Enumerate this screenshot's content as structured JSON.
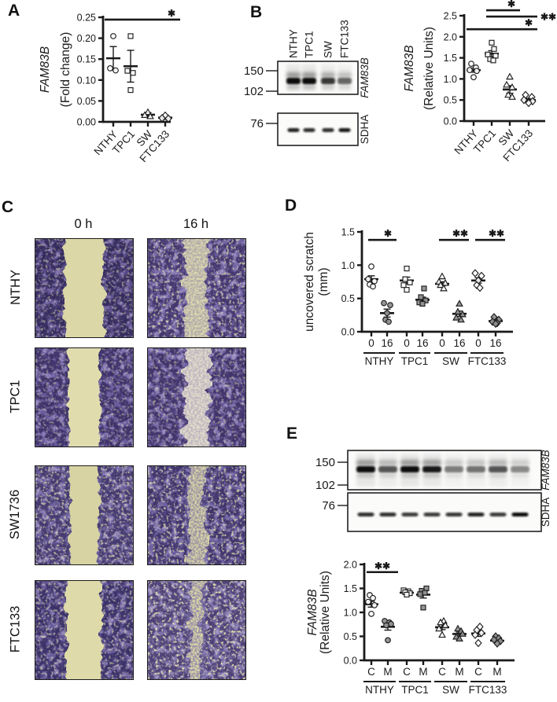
{
  "panels": {
    "A": "A",
    "B": "B",
    "C": "C",
    "D": "D",
    "E": "E"
  },
  "colors": {
    "ink": "#1a1a1a",
    "marker_fill_gray": "#8f8f8f",
    "stain_purple": "#5b4d8c",
    "scratch_pale": "#dcd8a8"
  },
  "panel_c": {
    "col_headers": [
      "0 h",
      "16 h"
    ],
    "row_labels": [
      "NTHY",
      "TPC1",
      "SW1736",
      "FTC133"
    ]
  },
  "blots": {
    "b": {
      "lane_labels": [
        "NTHY",
        "TPC1",
        "SW",
        "FTC133"
      ],
      "mw_top": [
        "150",
        "102"
      ],
      "mw_bottom": [
        "76"
      ],
      "target_top": "FAM83B",
      "target_bottom": "SDHA",
      "band_intensity_top": [
        1.0,
        1.0,
        0.8,
        0.6
      ],
      "band_intensity_bottom": [
        0.9,
        0.85,
        0.85,
        0.95
      ]
    },
    "e": {
      "lane_labels": [],
      "mw_top": [
        "150",
        "102"
      ],
      "mw_bottom": [
        "76"
      ],
      "target_top": "FAM83B",
      "target_bottom": "SDHA",
      "band_intensity_top": [
        1.0,
        0.68,
        1.0,
        0.95,
        0.5,
        0.55,
        0.68,
        0.45
      ],
      "band_intensity_bottom": [
        0.85,
        0.85,
        0.8,
        0.8,
        0.82,
        0.9,
        0.8,
        1.0
      ]
    }
  },
  "chart_data": [
    {
      "id": "A",
      "type": "scatter",
      "title": "",
      "ylabel": [
        {
          "text": "FAM83B",
          "italic": true
        },
        {
          "text": "(Fold change)",
          "italic": false
        }
      ],
      "ylim": [
        0,
        0.25
      ],
      "yticks": [
        "0.00",
        "0.05",
        "0.10",
        "0.15",
        "0.20",
        "0.25"
      ],
      "categories": [
        "NTHY",
        "TPC1",
        "SW",
        "FTC133"
      ],
      "columns": [
        {
          "tick": "NTHY",
          "marker": "circle",
          "filled": false,
          "mean": 0.152,
          "sem": 0.028,
          "points": [
            [
              0,
              0.205
            ],
            [
              -4,
              0.128
            ],
            [
              3,
              0.123
            ]
          ]
        },
        {
          "tick": "TPC1",
          "marker": "square",
          "filled": false,
          "mean": 0.133,
          "sem": 0.038,
          "points": [
            [
              0,
              0.205
            ],
            [
              -4,
              0.122
            ],
            [
              3,
              0.117
            ],
            [
              0,
              0.076
            ]
          ]
        },
        {
          "tick": "SW",
          "marker": "triangle",
          "filled": false,
          "mean": 0.017,
          "sem": 0.005,
          "points": [
            [
              0,
              0.023
            ],
            [
              -4,
              0.016
            ],
            [
              3,
              0.013
            ]
          ]
        },
        {
          "tick": "FTC133",
          "marker": "diamond",
          "filled": false,
          "mean": 0.01,
          "sem": 0.004,
          "points": [
            [
              0,
              0.015
            ],
            [
              -4,
              0.009
            ],
            [
              4,
              0.008
            ]
          ]
        }
      ],
      "sig": [
        {
          "c1": 0,
          "c2": 3,
          "ext": [
            -11,
            19
          ],
          "v": 0.2445,
          "label": "*",
          "pos": "above-right"
        }
      ]
    },
    {
      "id": "B",
      "type": "scatter",
      "title": "",
      "ylabel": [
        {
          "text": "FAM83B",
          "italic": true
        },
        {
          "text": "(Relative Units)",
          "italic": false
        }
      ],
      "ylim": [
        0,
        2.5
      ],
      "yticks": [
        "0.0",
        "0.5",
        "1.0",
        "1.5",
        "2.0",
        "2.5"
      ],
      "categories": [
        "NTHY",
        "TPC1",
        "SW",
        "FTC133"
      ],
      "columns": [
        {
          "tick": "NTHY",
          "marker": "circle",
          "filled": false,
          "mean": 1.21,
          "sem": 0.05,
          "points": [
            [
              -3,
              1.36
            ],
            [
              3,
              1.27
            ],
            [
              -5,
              1.21
            ],
            [
              4,
              1.19
            ],
            [
              0,
              1.04
            ]
          ]
        },
        {
          "tick": "TPC1",
          "marker": "square",
          "filled": false,
          "mean": 1.6,
          "sem": 0.07,
          "points": [
            [
              0,
              1.86
            ],
            [
              3,
              1.71
            ],
            [
              -5,
              1.58
            ],
            [
              5,
              1.55
            ],
            [
              -2,
              1.47
            ],
            [
              2,
              1.44
            ]
          ]
        },
        {
          "tick": "SW",
          "marker": "triangle",
          "filled": false,
          "mean": 0.75,
          "sem": 0.09,
          "points": [
            [
              0,
              1.05
            ],
            [
              -4,
              0.86
            ],
            [
              3,
              0.8
            ],
            [
              -2,
              0.62
            ],
            [
              3,
              0.57
            ]
          ]
        },
        {
          "tick": "FTC133",
          "marker": "diamond",
          "filled": false,
          "mean": 0.5,
          "sem": 0.04,
          "points": [
            [
              -4,
              0.62
            ],
            [
              4,
              0.57
            ],
            [
              -6,
              0.5
            ],
            [
              5,
              0.47
            ],
            [
              0,
              0.43
            ]
          ]
        }
      ],
      "sig": [
        {
          "c1": 1,
          "c2": 2,
          "ext": [
            -7,
            13
          ],
          "v": 2.63,
          "label": "*",
          "pos": "above-right"
        },
        {
          "c1": 1,
          "c2": 3,
          "ext": [
            -7,
            11
          ],
          "v": 2.48,
          "label": "**",
          "pos": "right"
        },
        {
          "c1": 0,
          "c2": 3,
          "ext": [
            -9,
            11
          ],
          "v": 2.18,
          "label": "*",
          "pos": "above-right"
        }
      ]
    },
    {
      "id": "D",
      "type": "scatter",
      "title": "",
      "ylabel": [
        {
          "text": "uncovered scratch",
          "italic": false
        },
        {
          "text": "(mm)",
          "italic": false
        }
      ],
      "ylim": [
        0,
        1.5
      ],
      "yticks": [
        "0.0",
        "0.5",
        "1.0",
        "1.5"
      ],
      "categories": [
        "NTHY 0",
        "NTHY 16",
        "TPC1 0",
        "TPC1 16",
        "SW 0",
        "SW 16",
        "FTC133 0",
        "FTC133 16"
      ],
      "columns": [
        {
          "tick": "0",
          "marker": "circle",
          "filled": false,
          "mean": 0.79,
          "sem": 0.05,
          "points": [
            [
              0,
              0.98
            ],
            [
              -4,
              0.79
            ],
            [
              4,
              0.76
            ],
            [
              -2,
              0.71
            ],
            [
              2,
              0.68
            ]
          ]
        },
        {
          "tick": "16",
          "marker": "circle",
          "filled": true,
          "mean": 0.28,
          "sem": 0.06,
          "points": [
            [
              -4,
              0.43
            ],
            [
              4,
              0.4
            ],
            [
              0,
              0.28
            ],
            [
              -2,
              0.18
            ],
            [
              2,
              0.15
            ]
          ]
        },
        {
          "tick": "0",
          "marker": "square",
          "filled": false,
          "mean": 0.77,
          "sem": 0.05,
          "points": [
            [
              0,
              0.95
            ],
            [
              -2,
              0.79
            ],
            [
              4,
              0.74
            ],
            [
              -4,
              0.7
            ],
            [
              0,
              0.63
            ]
          ]
        },
        {
          "tick": "16",
          "marker": "square",
          "filled": true,
          "mean": 0.48,
          "sem": 0.04,
          "points": [
            [
              2,
              0.65
            ],
            [
              -2,
              0.52
            ],
            [
              4,
              0.47
            ],
            [
              -4,
              0.44
            ],
            [
              0,
              0.42
            ]
          ]
        },
        {
          "tick": "0",
          "marker": "triangle",
          "filled": false,
          "mean": 0.72,
          "sem": 0.03,
          "points": [
            [
              0,
              0.83
            ],
            [
              -4,
              0.75
            ],
            [
              4,
              0.73
            ],
            [
              -2,
              0.7
            ],
            [
              2,
              0.65
            ]
          ]
        },
        {
          "tick": "16",
          "marker": "triangle",
          "filled": true,
          "mean": 0.27,
          "sem": 0.04,
          "points": [
            [
              0,
              0.42
            ],
            [
              -2,
              0.3
            ],
            [
              4,
              0.26
            ],
            [
              -4,
              0.21
            ],
            [
              2,
              0.18
            ]
          ]
        },
        {
          "tick": "0",
          "marker": "diamond",
          "filled": false,
          "mean": 0.77,
          "sem": 0.04,
          "points": [
            [
              -4,
              0.88
            ],
            [
              4,
              0.84
            ],
            [
              0,
              0.77
            ],
            [
              -2,
              0.7
            ],
            [
              2,
              0.66
            ]
          ]
        },
        {
          "tick": "16",
          "marker": "diamond",
          "filled": true,
          "mean": 0.16,
          "sem": 0.02,
          "points": [
            [
              -2,
              0.22
            ],
            [
              4,
              0.18
            ],
            [
              -4,
              0.15
            ],
            [
              2,
              0.13
            ],
            [
              0,
              0.12
            ]
          ]
        }
      ],
      "group_labels": [
        {
          "label": "NTHY",
          "c1": 0,
          "c2": 1
        },
        {
          "label": "TPC1",
          "c1": 2,
          "c2": 3
        },
        {
          "label": "SW",
          "c1": 4,
          "c2": 5
        },
        {
          "label": "FTC133",
          "c1": 6,
          "c2": 7
        }
      ],
      "sig": [
        {
          "c1": 0,
          "c2": 1,
          "ext": [
            -4,
            12
          ],
          "v": 1.38,
          "label": "*",
          "pos": "above-right"
        },
        {
          "c1": 4,
          "c2": 5,
          "ext": [
            -4,
            12
          ],
          "v": 1.38,
          "label": "**",
          "pos": "above-right"
        },
        {
          "c1": 6,
          "c2": 7,
          "ext": [
            -4,
            12
          ],
          "v": 1.38,
          "label": "**",
          "pos": "above-right"
        }
      ]
    },
    {
      "id": "E",
      "type": "scatter",
      "title": "",
      "ylabel": [
        {
          "text": "FAM83B",
          "italic": true
        },
        {
          "text": "(Relative Units)",
          "italic": false
        }
      ],
      "ylim": [
        0,
        2.0
      ],
      "yticks": [
        "0.0",
        "0.5",
        "1.0",
        "1.5",
        "2.0"
      ],
      "categories": [
        "NTHY C",
        "NTHY M",
        "TPC1 C",
        "TPC1 M",
        "SW C",
        "SW M",
        "FTC133 C",
        "FTC133 M"
      ],
      "columns": [
        {
          "tick": "C",
          "marker": "circle",
          "filled": false,
          "mean": 1.17,
          "sem": 0.06,
          "points": [
            [
              -2,
              1.36
            ],
            [
              2,
              1.3
            ],
            [
              -4,
              1.22
            ],
            [
              4,
              1.15
            ],
            [
              0,
              0.97
            ]
          ]
        },
        {
          "tick": "M",
          "marker": "circle",
          "filled": true,
          "mean": 0.7,
          "sem": 0.07,
          "points": [
            [
              -4,
              0.82
            ],
            [
              2,
              0.79
            ],
            [
              4,
              0.76
            ],
            [
              -2,
              0.73
            ],
            [
              0,
              0.42
            ]
          ]
        },
        {
          "tick": "C",
          "marker": "square",
          "filled": false,
          "mean": 1.41,
          "sem": 0.02,
          "points": [
            [
              -4,
              1.46
            ],
            [
              2,
              1.44
            ],
            [
              -2,
              1.42
            ],
            [
              4,
              1.4
            ],
            [
              0,
              1.37
            ]
          ]
        },
        {
          "tick": "M",
          "marker": "square",
          "filled": true,
          "mean": 1.37,
          "sem": 0.07,
          "points": [
            [
              4,
              1.5
            ],
            [
              -2,
              1.45
            ],
            [
              2,
              1.41
            ],
            [
              -4,
              1.38
            ],
            [
              0,
              1.1
            ]
          ]
        },
        {
          "tick": "C",
          "marker": "triangle",
          "filled": false,
          "mean": 0.69,
          "sem": 0.05,
          "points": [
            [
              2,
              0.82
            ],
            [
              -2,
              0.79
            ],
            [
              4,
              0.73
            ],
            [
              -4,
              0.66
            ],
            [
              0,
              0.53
            ]
          ]
        },
        {
          "tick": "M",
          "marker": "triangle",
          "filled": true,
          "mean": 0.55,
          "sem": 0.04,
          "points": [
            [
              -2,
              0.66
            ],
            [
              2,
              0.61
            ],
            [
              4,
              0.55
            ],
            [
              -4,
              0.49
            ],
            [
              0,
              0.45
            ]
          ]
        },
        {
          "tick": "C",
          "marker": "diamond",
          "filled": false,
          "mean": 0.56,
          "sem": 0.06,
          "points": [
            [
              2,
              0.7
            ],
            [
              -2,
              0.63
            ],
            [
              4,
              0.57
            ],
            [
              -4,
              0.53
            ],
            [
              0,
              0.36
            ]
          ]
        },
        {
          "tick": "M",
          "marker": "diamond",
          "filled": true,
          "mean": 0.41,
          "sem": 0.03,
          "points": [
            [
              -2,
              0.5
            ],
            [
              2,
              0.46
            ],
            [
              -4,
              0.43
            ],
            [
              4,
              0.4
            ],
            [
              0,
              0.35
            ]
          ]
        }
      ],
      "group_labels": [
        {
          "label": "NTHY",
          "c1": 0,
          "c2": 1
        },
        {
          "label": "TPC1",
          "c1": 2,
          "c2": 3
        },
        {
          "label": "SW",
          "c1": 4,
          "c2": 5
        },
        {
          "label": "FTC133",
          "c1": 6,
          "c2": 7
        }
      ],
      "sig": [
        {
          "c1": 0,
          "c2": 1,
          "ext": [
            -6,
            13
          ],
          "v": 1.84,
          "label": "**",
          "pos": "above-center"
        }
      ]
    }
  ]
}
